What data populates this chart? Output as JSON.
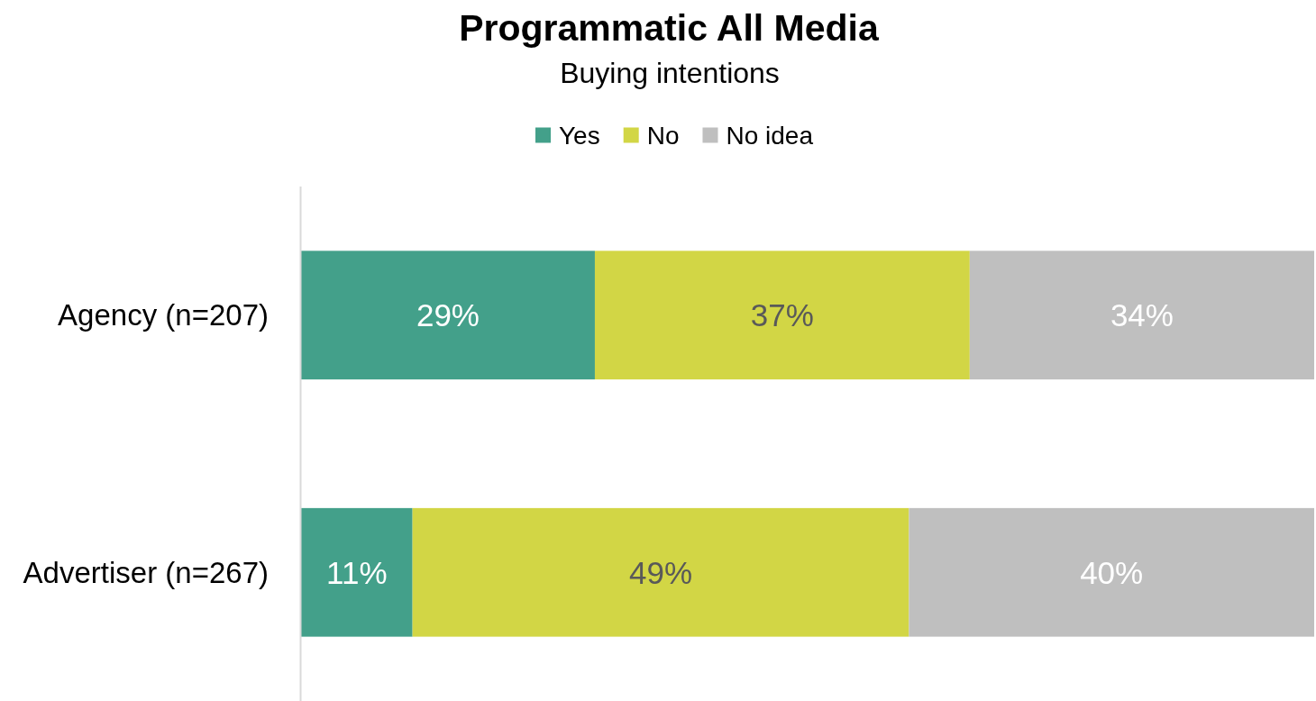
{
  "chart_data": {
    "type": "bar",
    "orientation": "horizontal",
    "stacked": true,
    "title": "Programmatic All Media",
    "subtitle": "Buying intentions",
    "categories": [
      "Agency (n=207)",
      "Advertiser (n=267)"
    ],
    "series": [
      {
        "name": "Yes",
        "color": "#43a08a",
        "values": [
          29,
          11
        ],
        "value_labels": [
          "29%",
          "11%"
        ]
      },
      {
        "name": "No",
        "color": "#d2d645",
        "values": [
          37,
          49
        ],
        "value_labels": [
          "37%",
          "49%"
        ]
      },
      {
        "name": "No idea",
        "color": "#bfbfbf",
        "values": [
          34,
          40
        ],
        "value_labels": [
          "34%",
          "40%"
        ]
      }
    ],
    "xlim": [
      0,
      100
    ],
    "tick_labels": "y",
    "legend": "top"
  }
}
